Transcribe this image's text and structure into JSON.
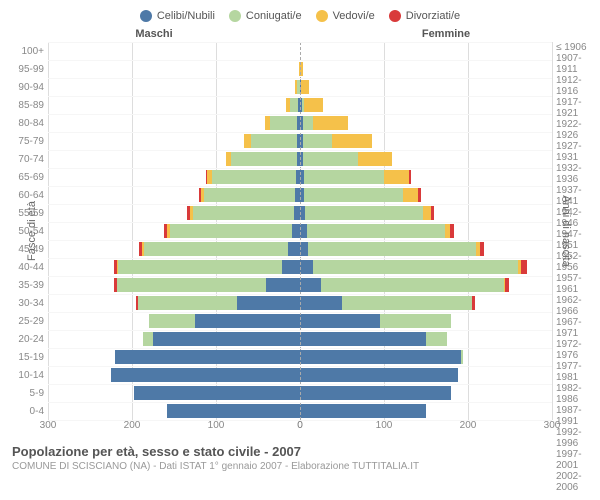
{
  "chart": {
    "type": "population-pyramid",
    "background_color": "#ffffff",
    "grid_color": "#dddddd",
    "hgrid_color": "#f6f6f6",
    "center_line_color": "#aaaaaa",
    "text_color": "#555555",
    "tick_color": "#888888",
    "legend": [
      {
        "label": "Celibi/Nubili",
        "color": "#4e79a7"
      },
      {
        "label": "Coniugati/e",
        "color": "#b5d6a0"
      },
      {
        "label": "Vedovi/e",
        "color": "#f5c14a"
      },
      {
        "label": "Divorziati/e",
        "color": "#d93a3a"
      }
    ],
    "header_male": "Maschi",
    "header_female": "Femmine",
    "y_left_label": "Fasce di età",
    "y_right_label": "Anni di nascita",
    "age_groups": [
      "100+",
      "95-99",
      "90-94",
      "85-89",
      "80-84",
      "75-79",
      "70-74",
      "65-69",
      "60-64",
      "55-59",
      "50-54",
      "45-49",
      "40-44",
      "35-39",
      "30-34",
      "25-29",
      "20-24",
      "15-19",
      "10-14",
      "5-9",
      "0-4"
    ],
    "birth_years": [
      "≤ 1906",
      "1907-1911",
      "1912-1916",
      "1917-1921",
      "1922-1926",
      "1927-1931",
      "1932-1936",
      "1937-1941",
      "1942-1946",
      "1947-1951",
      "1952-1956",
      "1957-1961",
      "1962-1966",
      "1967-1971",
      "1972-1976",
      "1977-1981",
      "1982-1986",
      "1987-1991",
      "1992-1996",
      "1997-2001",
      "2002-2006"
    ],
    "x_max": 300,
    "x_ticks": [
      300,
      200,
      100,
      0,
      100,
      200,
      300
    ],
    "male": [
      {
        "single": 0,
        "married": 0,
        "widowed": 0,
        "divorced": 0
      },
      {
        "single": 0,
        "married": 0,
        "widowed": 1,
        "divorced": 0
      },
      {
        "single": 0,
        "married": 3,
        "widowed": 3,
        "divorced": 0
      },
      {
        "single": 2,
        "married": 10,
        "widowed": 5,
        "divorced": 0
      },
      {
        "single": 3,
        "married": 33,
        "widowed": 6,
        "divorced": 0
      },
      {
        "single": 3,
        "married": 55,
        "widowed": 9,
        "divorced": 0
      },
      {
        "single": 4,
        "married": 78,
        "widowed": 6,
        "divorced": 0
      },
      {
        "single": 5,
        "married": 100,
        "widowed": 6,
        "divorced": 1
      },
      {
        "single": 6,
        "married": 108,
        "widowed": 4,
        "divorced": 2
      },
      {
        "single": 7,
        "married": 120,
        "widowed": 4,
        "divorced": 3
      },
      {
        "single": 10,
        "married": 145,
        "widowed": 3,
        "divorced": 4
      },
      {
        "single": 14,
        "married": 172,
        "widowed": 2,
        "divorced": 4
      },
      {
        "single": 22,
        "married": 195,
        "widowed": 1,
        "divorced": 4
      },
      {
        "single": 40,
        "married": 178,
        "widowed": 0,
        "divorced": 3
      },
      {
        "single": 75,
        "married": 118,
        "widowed": 0,
        "divorced": 2
      },
      {
        "single": 125,
        "married": 55,
        "widowed": 0,
        "divorced": 0
      },
      {
        "single": 175,
        "married": 12,
        "widowed": 0,
        "divorced": 0
      },
      {
        "single": 220,
        "married": 0,
        "widowed": 0,
        "divorced": 0
      },
      {
        "single": 225,
        "married": 0,
        "widowed": 0,
        "divorced": 0
      },
      {
        "single": 198,
        "married": 0,
        "widowed": 0,
        "divorced": 0
      },
      {
        "single": 158,
        "married": 0,
        "widowed": 0,
        "divorced": 0
      }
    ],
    "female": [
      {
        "single": 0,
        "married": 0,
        "widowed": 0,
        "divorced": 0
      },
      {
        "single": 0,
        "married": 0,
        "widowed": 3,
        "divorced": 0
      },
      {
        "single": 1,
        "married": 0,
        "widowed": 10,
        "divorced": 0
      },
      {
        "single": 2,
        "married": 3,
        "widowed": 22,
        "divorced": 0
      },
      {
        "single": 3,
        "married": 12,
        "widowed": 42,
        "divorced": 0
      },
      {
        "single": 3,
        "married": 35,
        "widowed": 48,
        "divorced": 0
      },
      {
        "single": 4,
        "married": 65,
        "widowed": 40,
        "divorced": 0
      },
      {
        "single": 5,
        "married": 95,
        "widowed": 30,
        "divorced": 2
      },
      {
        "single": 5,
        "married": 118,
        "widowed": 18,
        "divorced": 3
      },
      {
        "single": 6,
        "married": 140,
        "widowed": 10,
        "divorced": 3
      },
      {
        "single": 8,
        "married": 165,
        "widowed": 6,
        "divorced": 4
      },
      {
        "single": 10,
        "married": 200,
        "widowed": 4,
        "divorced": 5
      },
      {
        "single": 15,
        "married": 245,
        "widowed": 3,
        "divorced": 7
      },
      {
        "single": 25,
        "married": 218,
        "widowed": 1,
        "divorced": 5
      },
      {
        "single": 50,
        "married": 155,
        "widowed": 0,
        "divorced": 3
      },
      {
        "single": 95,
        "married": 85,
        "widowed": 0,
        "divorced": 0
      },
      {
        "single": 150,
        "married": 25,
        "widowed": 0,
        "divorced": 0
      },
      {
        "single": 192,
        "married": 2,
        "widowed": 0,
        "divorced": 0
      },
      {
        "single": 188,
        "married": 0,
        "widowed": 0,
        "divorced": 0
      },
      {
        "single": 180,
        "married": 0,
        "widowed": 0,
        "divorced": 0
      },
      {
        "single": 150,
        "married": 0,
        "widowed": 0,
        "divorced": 0
      }
    ]
  },
  "footer": {
    "title": "Popolazione per età, sesso e stato civile - 2007",
    "subtitle": "COMUNE DI SCISCIANO (NA) - Dati ISTAT 1° gennaio 2007 - Elaborazione TUTTITALIA.IT"
  }
}
